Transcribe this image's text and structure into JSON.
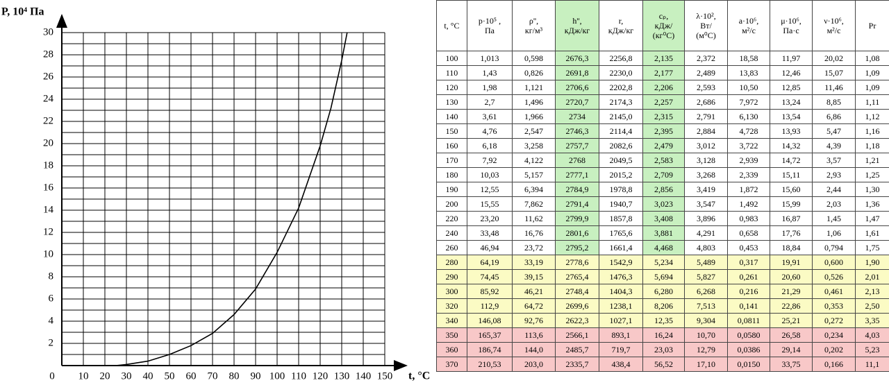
{
  "chart_data": {
    "type": "line",
    "ylabel": "P, 10⁴ Па",
    "xlabel": "t, °C",
    "x": [
      25,
      30,
      40,
      50,
      60,
      70,
      80,
      90,
      100,
      110,
      120,
      125,
      130,
      132.5
    ],
    "values": [
      0,
      0.1,
      0.4,
      1.0,
      1.8,
      2.9,
      4.6,
      6.9,
      10.2,
      14.2,
      19.8,
      23.2,
      27.5,
      30
    ],
    "color": "#000000",
    "xlim": [
      0,
      150
    ],
    "ylim": [
      0,
      30
    ],
    "xticks": [
      0,
      10,
      20,
      30,
      40,
      50,
      60,
      70,
      80,
      90,
      100,
      110,
      120,
      130,
      140,
      150
    ],
    "yticks": [
      2,
      4,
      6,
      8,
      10,
      12,
      14,
      16,
      18,
      20,
      22,
      24,
      26,
      28,
      30
    ],
    "y_minor_ticks": [
      1,
      3,
      5,
      7,
      9,
      11,
      13,
      15,
      17,
      19,
      21,
      23,
      25,
      27,
      29
    ],
    "grid": true
  },
  "table": {
    "header": [
      [
        "t, °C"
      ],
      [
        "p·10⁵ ,",
        "Па"
      ],
      [
        "ρ'',",
        "кг/м³"
      ],
      [
        "h'',",
        "кДж/кг"
      ],
      [
        "r,",
        "кДж/кг"
      ],
      [
        "cₚ,",
        "кДж/",
        "(кг⁰С)"
      ],
      [
        "λ·10²,",
        "Вт/",
        "(м⁰С)"
      ],
      [
        "a·10⁶,",
        "м²/с"
      ],
      [
        "μ·10⁶,",
        "Па·с"
      ],
      [
        "ν·10⁶,",
        "м²/с"
      ],
      [
        "Pr"
      ]
    ],
    "rows": [
      [
        "100",
        "1,013",
        "0,598",
        "2676,3",
        "2256,8",
        "2,135",
        "2,372",
        "18,58",
        "11,97",
        "20,02",
        "1,08"
      ],
      [
        "110",
        "1,43",
        "0,826",
        "2691,8",
        "2230,0",
        "2,177",
        "2,489",
        "13,83",
        "12,46",
        "15,07",
        "1,09"
      ],
      [
        "120",
        "1,98",
        "1,121",
        "2706,6",
        "2202,8",
        "2,206",
        "2,593",
        "10,50",
        "12,85",
        "11,46",
        "1,09"
      ],
      [
        "130",
        "2,7",
        "1,496",
        "2720,7",
        "2174,3",
        "2,257",
        "2,686",
        "7,972",
        "13,24",
        "8,85",
        "1,11"
      ],
      [
        "140",
        "3,61",
        "1,966",
        "2734",
        "2145,0",
        "2,315",
        "2,791",
        "6,130",
        "13,54",
        "6,86",
        "1,12"
      ],
      [
        "150",
        "4,76",
        "2,547",
        "2746,3",
        "2114,4",
        "2,395",
        "2,884",
        "4,728",
        "13,93",
        "5,47",
        "1,16"
      ],
      [
        "160",
        "6,18",
        "3,258",
        "2757,7",
        "2082,6",
        "2,479",
        "3,012",
        "3,722",
        "14,32",
        "4,39",
        "1,18"
      ],
      [
        "170",
        "7,92",
        "4,122",
        "2768",
        "2049,5",
        "2,583",
        "3,128",
        "2,939",
        "14,72",
        "3,57",
        "1,21"
      ],
      [
        "180",
        "10,03",
        "5,157",
        "2777,1",
        "2015,2",
        "2,709",
        "3,268",
        "2,339",
        "15,11",
        "2,93",
        "1,25"
      ],
      [
        "190",
        "12,55",
        "6,394",
        "2784,9",
        "1978,8",
        "2,856",
        "3,419",
        "1,872",
        "15,60",
        "2,44",
        "1,30"
      ],
      [
        "200",
        "15,55",
        "7,862",
        "2791,4",
        "1940,7",
        "3,023",
        "3,547",
        "1,492",
        "15,99",
        "2,03",
        "1,36"
      ],
      [
        "220",
        "23,20",
        "11,62",
        "2799,9",
        "1857,8",
        "3,408",
        "3,896",
        "0,983",
        "16,87",
        "1,45",
        "1,47"
      ],
      [
        "240",
        "33,48",
        "16,76",
        "2801,6",
        "1765,6",
        "3,881",
        "4,291",
        "0,658",
        "17,76",
        "1,06",
        "1,61"
      ],
      [
        "260",
        "46,94",
        "23,72",
        "2795,2",
        "1661,4",
        "4,468",
        "4,803",
        "0,453",
        "18,84",
        "0,794",
        "1,75"
      ],
      [
        "280",
        "64,19",
        "33,19",
        "2778,6",
        "1542,9",
        "5,234",
        "5,489",
        "0,317",
        "19,91",
        "0,600",
        "1,90"
      ],
      [
        "290",
        "74,45",
        "39,15",
        "2765,4",
        "1476,3",
        "5,694",
        "5,827",
        "0,261",
        "20,60",
        "0,526",
        "2,01"
      ],
      [
        "300",
        "85,92",
        "46,21",
        "2748,4",
        "1404,3",
        "6,280",
        "6,268",
        "0,216",
        "21,29",
        "0,461",
        "2,13"
      ],
      [
        "320",
        "112,9",
        "64,72",
        "2699,6",
        "1238,1",
        "8,206",
        "7,513",
        "0,141",
        "22,86",
        "0,353",
        "2,50"
      ],
      [
        "340",
        "146,08",
        "92,76",
        "2622,3",
        "1027,1",
        "12,35",
        "9,304",
        "0,0811",
        "25,21",
        "0,272",
        "3,35"
      ],
      [
        "350",
        "165,37",
        "113,6",
        "2566,1",
        "893,1",
        "16,24",
        "10,70",
        "0,0580",
        "26,58",
        "0,234",
        "4,03"
      ],
      [
        "360",
        "186,74",
        "144,0",
        "2485,7",
        "719,7",
        "23,03",
        "12,79",
        "0,0386",
        "29,14",
        "0,202",
        "5,23"
      ],
      [
        "370",
        "210,53",
        "203,0",
        "2335,7",
        "438,4",
        "56,52",
        "17,10",
        "0,0150",
        "33,75",
        "0,166",
        "11,1"
      ]
    ]
  }
}
